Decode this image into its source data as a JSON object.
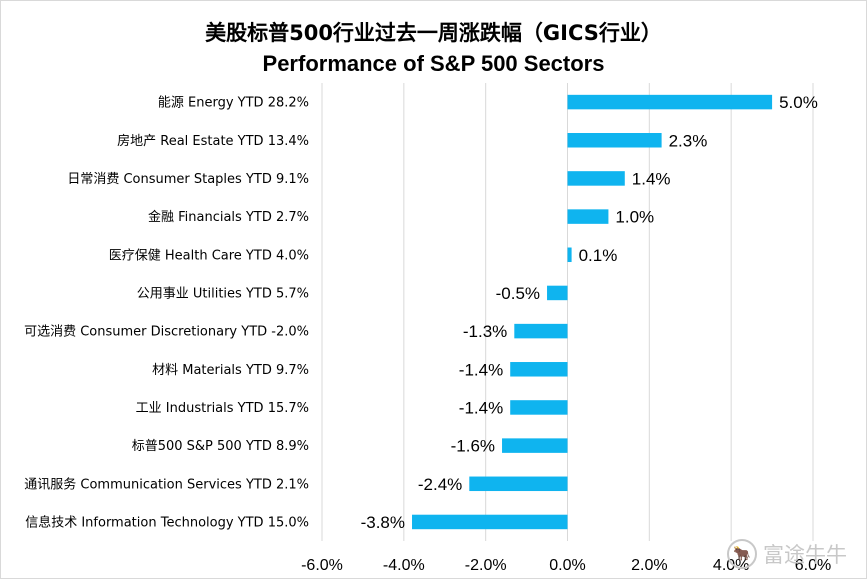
{
  "chart_data": {
    "type": "bar",
    "orientation": "horizontal",
    "title": "美股标普500行业过去一周涨跌幅（GICS行业）",
    "subtitle": "Performance of S&P 500 Sectors",
    "categories": [
      "能源 Energy YTD 28.2%",
      "房地产 Real Estate YTD 13.4%",
      "日常消费 Consumer Staples YTD 9.1%",
      "金融 Financials YTD 2.7%",
      "医疗保健 Health Care YTD 4.0%",
      "公用事业 Utilities YTD 5.7%",
      "可选消费 Consumer Discretionary YTD -2.0%",
      "材料 Materials YTD 9.7%",
      "工业 Industrials YTD 15.7%",
      "标普500 S&P 500 YTD 8.9%",
      "通讯服务 Communication Services YTD 2.1%",
      "信息技术 Information Technology YTD 15.0%"
    ],
    "values": [
      5.0,
      2.3,
      1.4,
      1.0,
      0.1,
      -0.5,
      -1.3,
      -1.4,
      -1.4,
      -1.6,
      -2.4,
      -3.8
    ],
    "data_labels": [
      "5.0%",
      "2.3%",
      "1.4%",
      "1.0%",
      "0.1%",
      "-0.5%",
      "-1.3%",
      "-1.4%",
      "-1.4%",
      "-1.6%",
      "-2.4%",
      "-3.8%"
    ],
    "xlim": [
      -6,
      6
    ],
    "xticks": [
      -6,
      -4,
      -2,
      0,
      2,
      4,
      6
    ],
    "xtick_labels": [
      "-6.0%",
      "-4.0%",
      "-2.0%",
      "0.0%",
      "2.0%",
      "4.0%",
      "6.0%"
    ],
    "grid": "vertical",
    "bar_color": "#0fb4ef",
    "grid_color": "#d9d9d9"
  },
  "watermark": {
    "icon": "futu-bull-icon",
    "text": "富途牛牛"
  }
}
